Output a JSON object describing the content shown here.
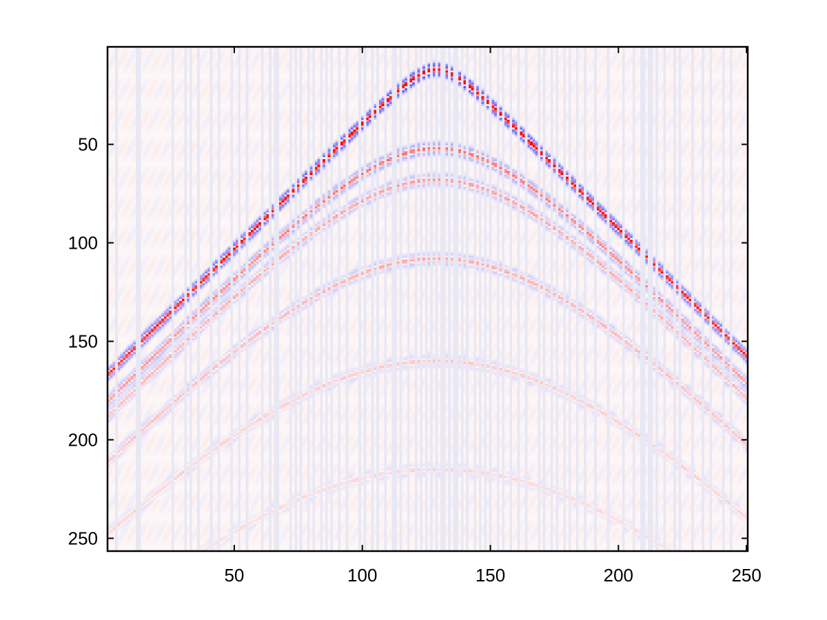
{
  "chart_data": {
    "type": "heatmap",
    "title": "",
    "xlabel": "",
    "ylabel": "",
    "xlim": [
      0.5,
      250.5
    ],
    "ylim": [
      0.5,
      256.5
    ],
    "y_axis_direction": "reversed",
    "grid": false,
    "x_ticks": [
      50,
      100,
      150,
      200,
      250
    ],
    "y_ticks": [
      50,
      100,
      150,
      200,
      250
    ],
    "x_tick_labels": [
      "50",
      "100",
      "150",
      "200",
      "250"
    ],
    "y_tick_labels": [
      "50",
      "100",
      "150",
      "200",
      "250"
    ],
    "colormap": "diverging blue-white-red",
    "colors": {
      "negative": "#0000ff",
      "zero": "#ffffff",
      "positive": "#ff0000",
      "background": "#fdf7f7",
      "missing_trace": "#e8e8f4"
    },
    "apex": {
      "x": 129,
      "y": 12
    },
    "events": [
      {
        "apex_time": 12,
        "amplitude": 1.0
      },
      {
        "apex_time": 52,
        "amplitude": 0.45
      },
      {
        "apex_time": 68,
        "amplitude": 0.3
      },
      {
        "apex_time": 108,
        "amplitude": 0.25
      },
      {
        "apex_time": 160,
        "amplitude": 0.15
      },
      {
        "apex_time": 215,
        "amplitude": 0.1
      }
    ],
    "missing_traces": [
      4,
      12,
      13,
      26,
      31,
      33,
      36,
      41,
      44,
      49,
      52,
      55,
      61,
      64,
      66,
      67,
      72,
      74,
      76,
      79,
      81,
      84,
      86,
      88,
      91,
      94,
      99,
      101,
      104,
      106,
      109,
      112,
      113,
      115,
      118,
      121,
      123,
      125,
      127,
      129,
      131,
      132,
      134,
      136,
      137,
      139,
      141,
      144,
      146,
      148,
      150,
      153,
      155,
      158,
      161,
      164,
      169,
      171,
      174,
      176,
      179,
      181,
      184,
      187,
      191,
      196,
      202,
      206,
      209,
      210,
      212,
      213,
      215,
      218,
      222,
      224,
      229,
      233,
      236,
      241,
      244
    ]
  }
}
